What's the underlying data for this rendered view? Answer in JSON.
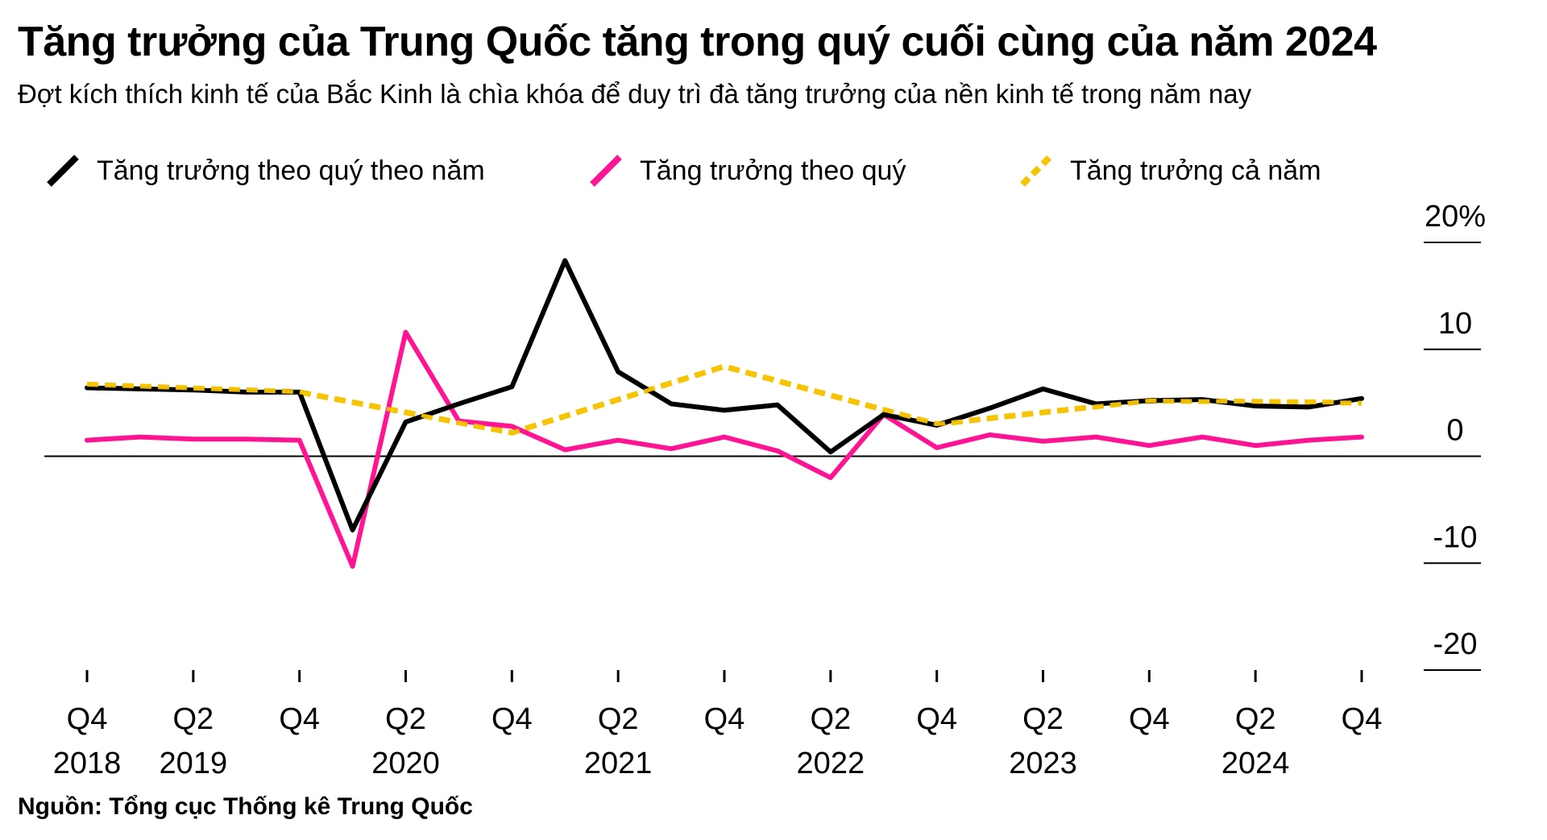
{
  "header": {
    "title": "Tăng trưởng của Trung Quốc tăng trong quý cuối cùng của năm 2024",
    "subtitle": "Đợt kích thích kinh tế của Bắc Kinh là chìa khóa để duy trì đà tăng trưởng của nền kinh tế trong năm nay"
  },
  "footer": {
    "source": "Nguồn: Tổng cục Thống kê Trung Quốc"
  },
  "chart_data": {
    "type": "line",
    "title": "Tăng trưởng của Trung Quốc tăng trong quý cuối cùng của năm 2024",
    "subtitle": "Đợt kích thích kinh tế của Bắc Kinh là chìa khóa để duy trì đà tăng trưởng của nền kinh tế trong năm nay",
    "xlabel": "",
    "ylabel": "",
    "ylim": [
      -20,
      20
    ],
    "y_ticks": [
      "20%",
      "10",
      "0",
      "-10",
      "-20"
    ],
    "y_tick_values": [
      20,
      10,
      0,
      -10,
      -20
    ],
    "x": [
      "Q4 2018",
      "Q1 2019",
      "Q2 2019",
      "Q3 2019",
      "Q4 2019",
      "Q1 2020",
      "Q2 2020",
      "Q3 2020",
      "Q4 2020",
      "Q1 2021",
      "Q2 2021",
      "Q3 2021",
      "Q4 2021",
      "Q1 2022",
      "Q2 2022",
      "Q3 2022",
      "Q4 2022",
      "Q1 2023",
      "Q2 2023",
      "Q3 2023",
      "Q4 2023",
      "Q1 2024",
      "Q2 2024",
      "Q3 2024",
      "Q4 2024"
    ],
    "x_tick_labels": [
      {
        "index": 0,
        "quarter": "Q4",
        "year": "2018"
      },
      {
        "index": 2,
        "quarter": "Q2",
        "year": "2019"
      },
      {
        "index": 4,
        "quarter": "Q4",
        "year": ""
      },
      {
        "index": 6,
        "quarter": "Q2",
        "year": "2020"
      },
      {
        "index": 8,
        "quarter": "Q4",
        "year": ""
      },
      {
        "index": 10,
        "quarter": "Q2",
        "year": "2021"
      },
      {
        "index": 12,
        "quarter": "Q4",
        "year": ""
      },
      {
        "index": 14,
        "quarter": "Q2",
        "year": "2022"
      },
      {
        "index": 16,
        "quarter": "Q4",
        "year": ""
      },
      {
        "index": 18,
        "quarter": "Q2",
        "year": "2023"
      },
      {
        "index": 20,
        "quarter": "Q4",
        "year": ""
      },
      {
        "index": 22,
        "quarter": "Q2",
        "year": "2024"
      },
      {
        "index": 24,
        "quarter": "Q4",
        "year": ""
      }
    ],
    "legend_position": "top",
    "grid": false,
    "series": [
      {
        "name": "Tăng trưởng theo quý theo năm",
        "color": "#000000",
        "style": "solid",
        "values": [
          6.4,
          6.3,
          6.2,
          6.0,
          6.0,
          -6.9,
          3.2,
          4.9,
          6.5,
          18.3,
          7.9,
          4.9,
          4.3,
          4.8,
          0.4,
          3.9,
          2.9,
          4.5,
          6.3,
          4.9,
          5.2,
          5.3,
          4.7,
          4.6,
          5.4
        ]
      },
      {
        "name": "Tăng trưởng theo quý",
        "color": "#ff1493",
        "style": "solid",
        "values": [
          1.5,
          1.8,
          1.6,
          1.6,
          1.5,
          -10.3,
          11.6,
          3.3,
          2.8,
          0.6,
          1.5,
          0.7,
          1.8,
          0.5,
          -2.0,
          3.9,
          0.8,
          2.0,
          1.4,
          1.8,
          1.0,
          1.8,
          1.0,
          1.5,
          1.8
        ]
      },
      {
        "name": "Tăng trưởng cả năm",
        "color": "#f5c400",
        "style": "dashed",
        "points": [
          {
            "index": 0,
            "value": 6.7
          },
          {
            "index": 4,
            "value": 6.0
          },
          {
            "index": 8,
            "value": 2.2
          },
          {
            "index": 12,
            "value": 8.4
          },
          {
            "index": 16,
            "value": 3.0
          },
          {
            "index": 20,
            "value": 5.2
          },
          {
            "index": 24,
            "value": 5.0
          }
        ]
      }
    ]
  }
}
